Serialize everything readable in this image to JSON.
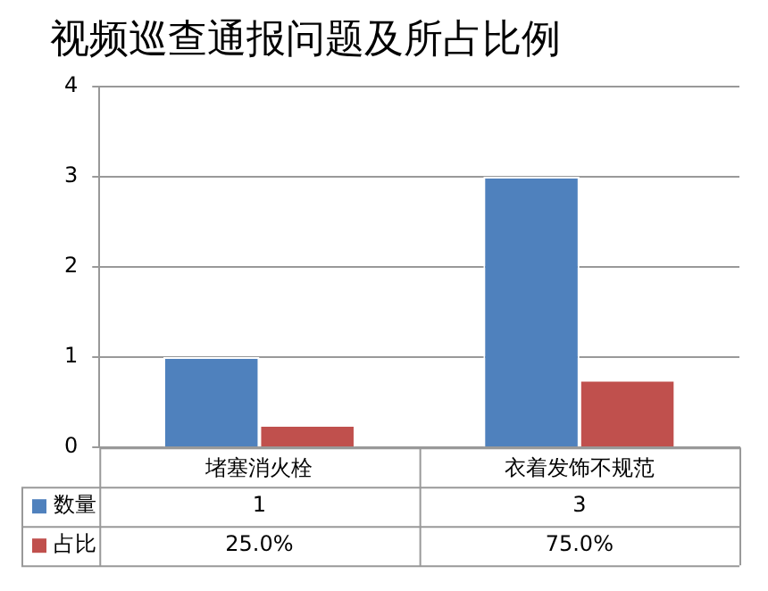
{
  "chart_data": {
    "type": "bar",
    "title": "视频巡查通报问题及所占比例",
    "categories": [
      "堵塞消火栓",
      "衣着发饰不规范"
    ],
    "series": [
      {
        "name": "数量",
        "color": "#4f81bd",
        "values": [
          1,
          3
        ],
        "value_labels": [
          "1",
          "3"
        ]
      },
      {
        "name": "占比",
        "color": "#c0504d",
        "values": [
          0.25,
          0.75
        ],
        "value_labels": [
          "25.0%",
          "75.0%"
        ]
      }
    ],
    "ylim": [
      0,
      4
    ],
    "yticks": [
      0,
      1,
      2,
      3,
      4
    ],
    "grid": "y",
    "legend": "bottom"
  }
}
